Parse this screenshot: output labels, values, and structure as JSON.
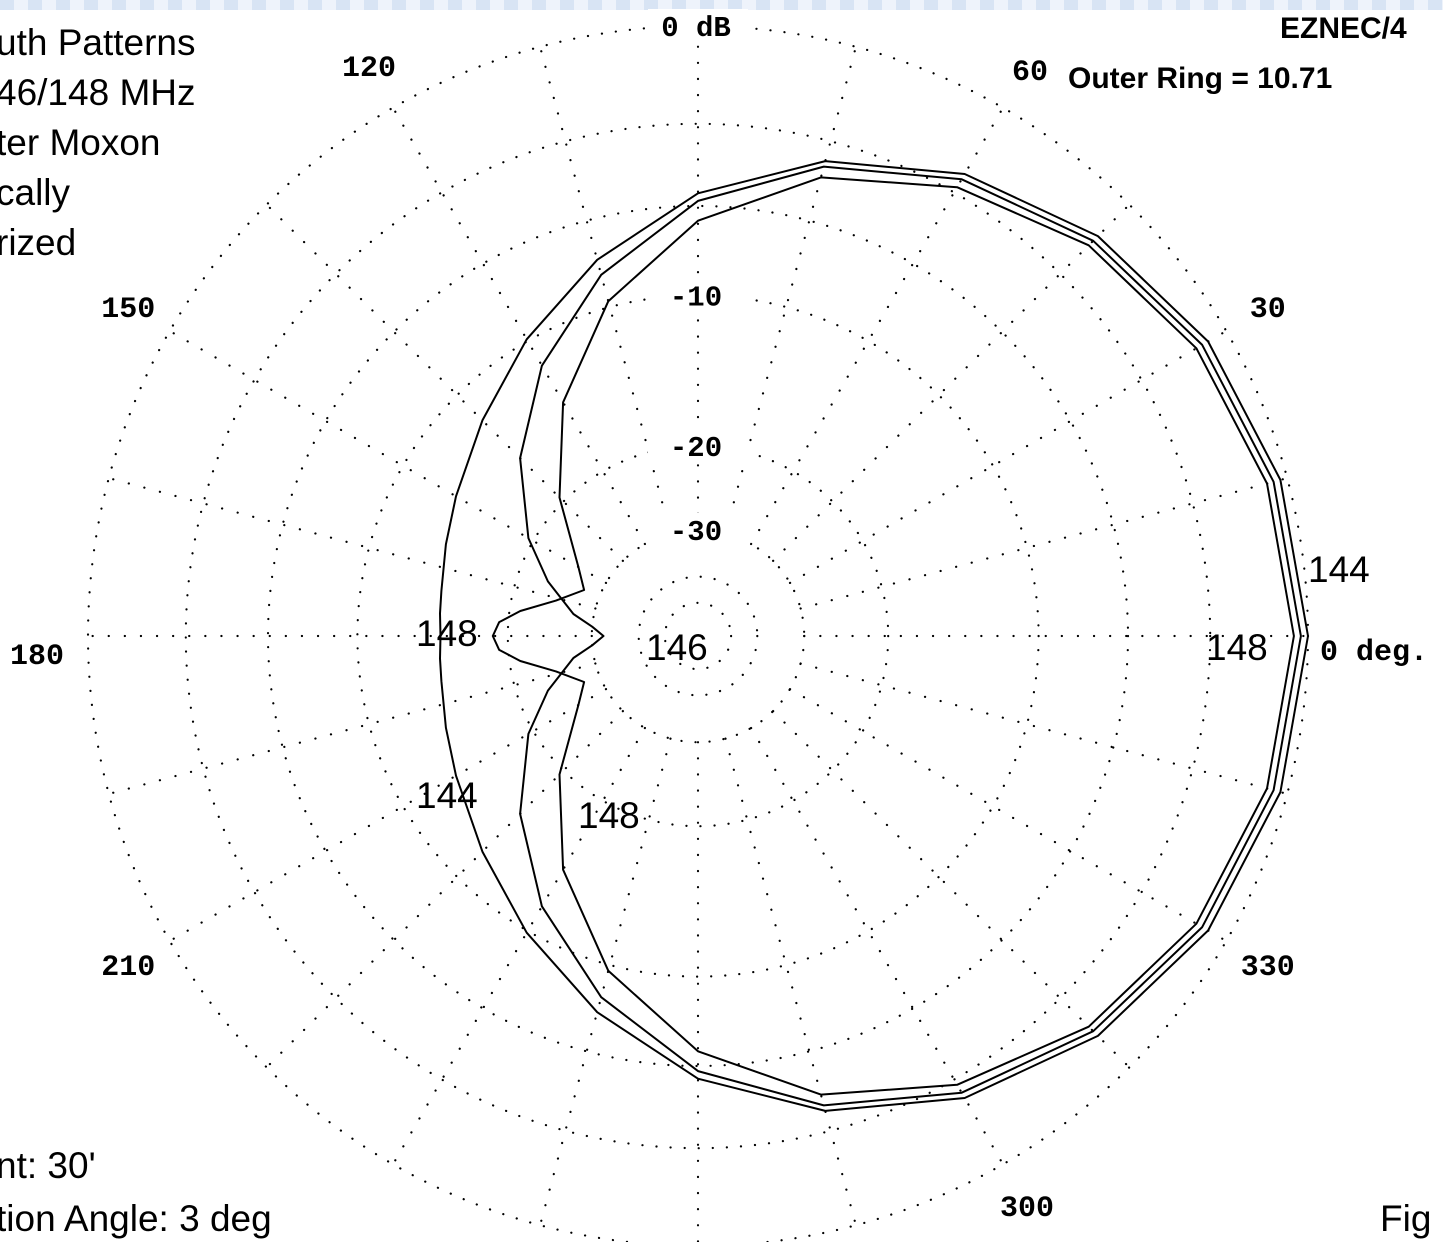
{
  "header": {
    "program": "EZNEC/4",
    "outer_ring": "Outer Ring = 10.71",
    "title_lines": [
      "uth Patterns",
      "46/148 MHz",
      "ter Moxon",
      "cally",
      "rized"
    ]
  },
  "footer": {
    "height": "nt: 30'",
    "elevation": "tion Angle:  3 deg",
    "fig": "Fig"
  },
  "chart_data": {
    "type": "polar-line",
    "subtype": "azimuth pattern",
    "ring_labels": [
      "0 dB",
      "-10",
      "-20",
      "-30"
    ],
    "angle_labels": [
      "0 deg.",
      "30",
      "60",
      "120",
      "150",
      "180",
      "210",
      "300",
      "330"
    ],
    "grid": "dotted",
    "series": [
      {
        "name": "144",
        "angles_deg": [
          0,
          15,
          30,
          45,
          60,
          75,
          90,
          105,
          120,
          135,
          150,
          160,
          170,
          175,
          180
        ],
        "gain_db": [
          0,
          -0.2,
          -0.6,
          -1.3,
          -2.3,
          -3.7,
          -5.5,
          -7.7,
          -9.9,
          -11.9,
          -13.4,
          -14.1,
          -14.6,
          -14.7,
          -14.8
        ]
      },
      {
        "name": "146",
        "angles_deg": [
          0,
          15,
          30,
          45,
          60,
          75,
          90,
          105,
          120,
          135,
          150,
          160,
          170,
          175,
          180
        ],
        "gain_db": [
          -0.2,
          -0.4,
          -0.8,
          -1.5,
          -2.5,
          -3.9,
          -5.8,
          -8.4,
          -11.5,
          -15.2,
          -19.5,
          -23.0,
          -27.0,
          -30.0,
          -32.0
        ]
      },
      {
        "name": "148",
        "angles_deg": [
          0,
          15,
          30,
          45,
          60,
          75,
          90,
          105,
          120,
          135,
          150,
          158,
          166,
          172,
          176,
          180
        ],
        "gain_db": [
          -0.4,
          -0.6,
          -1.0,
          -1.7,
          -2.8,
          -4.3,
          -6.6,
          -9.7,
          -14.0,
          -19.5,
          -25.5,
          -27.5,
          -24.5,
          -21.0,
          -19.2,
          -18.7
        ]
      }
    ],
    "labels": [
      {
        "text": "144"
      },
      {
        "text": "148"
      },
      {
        "text": "146"
      },
      {
        "text": "148"
      },
      {
        "text": "144"
      },
      {
        "text": "148"
      }
    ]
  }
}
